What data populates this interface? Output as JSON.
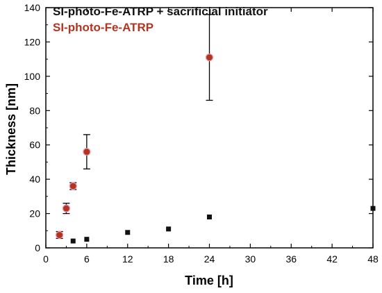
{
  "chart_data": {
    "type": "scatter",
    "title": "",
    "xlabel": "Time [h]",
    "ylabel": "Thickness [nm]",
    "xlim": [
      0,
      48
    ],
    "ylim": [
      0,
      140
    ],
    "x_ticks": [
      0,
      6,
      12,
      18,
      24,
      30,
      36,
      42,
      48
    ],
    "y_ticks": [
      0,
      20,
      40,
      60,
      80,
      100,
      120,
      140
    ],
    "grid": false,
    "legend_position": "top-left",
    "series": [
      {
        "name": "SI-photo-Fe-ATRP + sacrificial initiator",
        "color": "#111111",
        "marker": "square",
        "points": [
          {
            "x": 4,
            "y": 4
          },
          {
            "x": 6,
            "y": 5
          },
          {
            "x": 12,
            "y": 9
          },
          {
            "x": 18,
            "y": 11
          },
          {
            "x": 24,
            "y": 18
          },
          {
            "x": 48,
            "y": 23
          }
        ]
      },
      {
        "name": "SI-photo-Fe-ATRP",
        "color": "#b5341f",
        "marker": "circle",
        "points": [
          {
            "x": 2,
            "y": 7.5,
            "err": 2
          },
          {
            "x": 3,
            "y": 23,
            "err": 3
          },
          {
            "x": 4,
            "y": 36,
            "err": 2
          },
          {
            "x": 6,
            "y": 56,
            "err": 10
          },
          {
            "x": 24,
            "y": 111,
            "err": 25
          }
        ]
      }
    ]
  }
}
